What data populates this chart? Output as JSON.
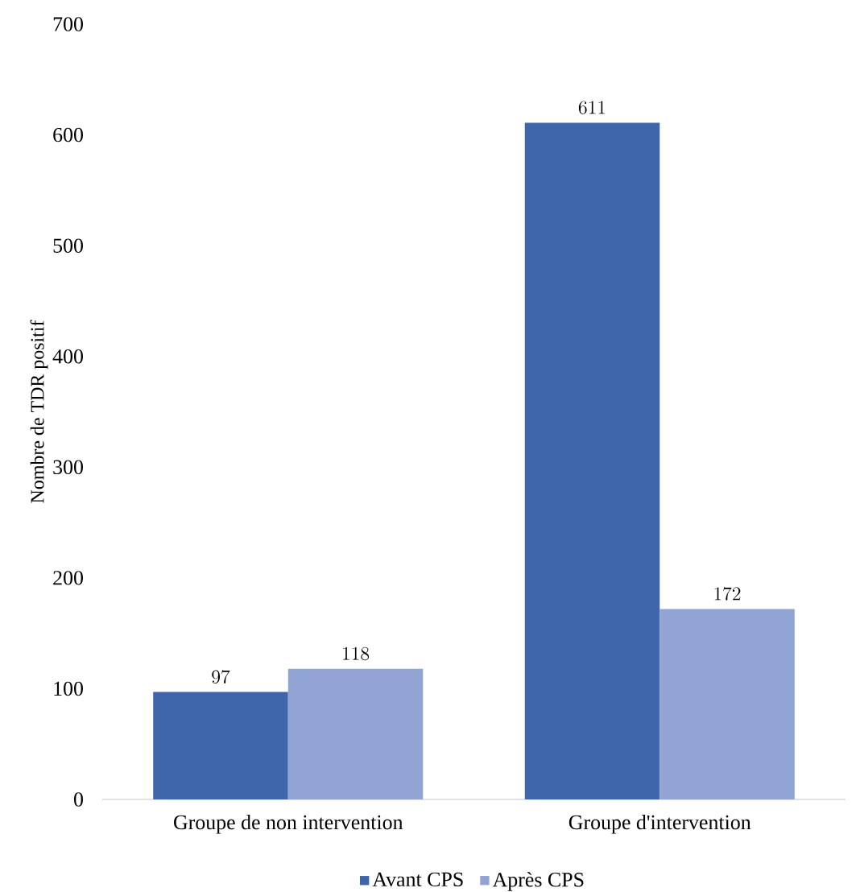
{
  "chart_data": {
    "type": "bar",
    "ylabel": "Nombre de TDR positif",
    "categories": [
      "Groupe de non intervention",
      "Groupe d'intervention"
    ],
    "series": [
      {
        "name": "Avant CPS",
        "color": "#3f65ab",
        "values": [
          97,
          611
        ]
      },
      {
        "name": "Après CPS",
        "color": "#91a4d4",
        "values": [
          118,
          172
        ]
      }
    ],
    "ylim": [
      0,
      700
    ],
    "yticks": [
      0,
      100,
      200,
      300,
      400,
      500,
      600,
      700
    ],
    "data_labels": true,
    "legend": "bottom"
  }
}
